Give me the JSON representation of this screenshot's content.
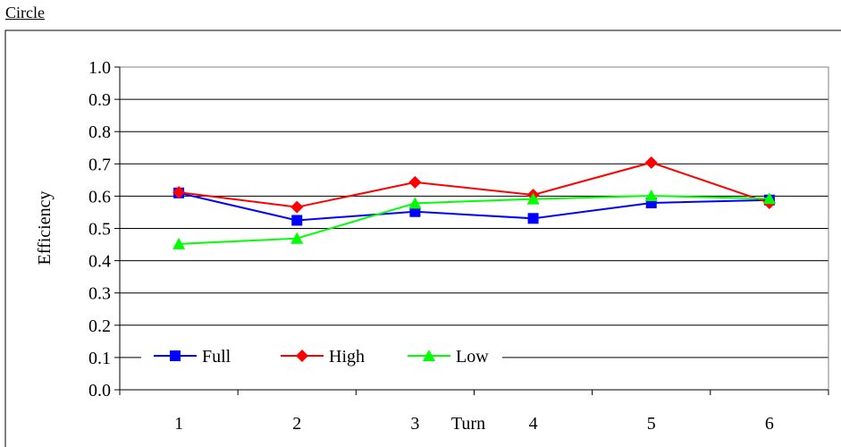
{
  "chart_data": {
    "type": "line",
    "title": "Circle",
    "xlabel": "Turn",
    "ylabel": "Efficiency",
    "categories": [
      "1",
      "2",
      "3",
      "4",
      "5",
      "6"
    ],
    "ylim": [
      0,
      1
    ],
    "yticks": [
      "0.0",
      "0.1",
      "0.2",
      "0.3",
      "0.4",
      "0.5",
      "0.6",
      "0.7",
      "0.8",
      "0.9",
      "1.0"
    ],
    "grid": true,
    "legend": "bottom-left",
    "series": [
      {
        "name": "Full",
        "color": "#0000ff",
        "marker": "square",
        "values": [
          0.61,
          0.525,
          0.552,
          0.531,
          0.579,
          0.588
        ]
      },
      {
        "name": "High",
        "color": "#ff0000",
        "marker": "diamond",
        "values": [
          0.612,
          0.566,
          0.643,
          0.604,
          0.704,
          0.579
        ]
      },
      {
        "name": "Low",
        "color": "#00ff00",
        "marker": "triangle",
        "values": [
          0.452,
          0.469,
          0.578,
          0.591,
          0.601,
          0.592
        ]
      }
    ]
  }
}
